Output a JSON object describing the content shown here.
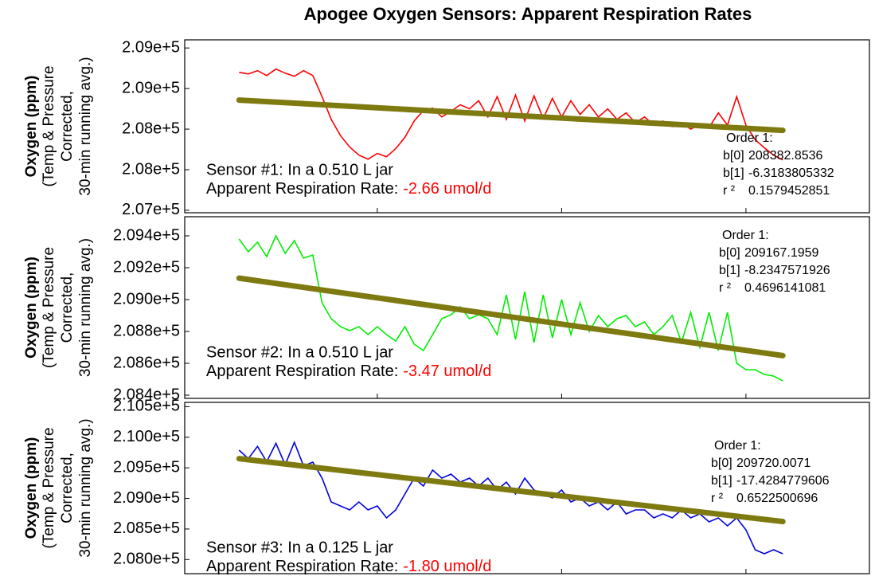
{
  "title": "Apogee Oxygen Sensors: Apparent Respiration Rates",
  "chart_data": [
    {
      "type": "line",
      "y_label": [
        "Oxygen (ppm)",
        "(Temp & Pressure",
        "Corrected,",
        "30-min running avg.)"
      ],
      "color": "#ff0000",
      "x": [
        4,
        5,
        6,
        7,
        8,
        9,
        10,
        11,
        12,
        13,
        14,
        15,
        16,
        17,
        18,
        19,
        20,
        21,
        22,
        23,
        24,
        25,
        26,
        27,
        28,
        29,
        30,
        31,
        32,
        33,
        34,
        35,
        36,
        37,
        38,
        39,
        40,
        41,
        42,
        43,
        44,
        45,
        46,
        47,
        48,
        49,
        50,
        51,
        52,
        53,
        54,
        55,
        56,
        57,
        58,
        59,
        60,
        61,
        62,
        63
      ],
      "values": [
        208700,
        208680,
        208720,
        208660,
        208740,
        208690,
        208650,
        208720,
        208660,
        208400,
        208120,
        207920,
        207780,
        207680,
        207630,
        207700,
        207660,
        207760,
        207900,
        208100,
        208230,
        208260,
        208150,
        208220,
        208300,
        208250,
        208350,
        208150,
        208400,
        208120,
        208420,
        208100,
        208410,
        208130,
        208380,
        208150,
        208350,
        208180,
        208300,
        208150,
        208250,
        208120,
        208200,
        208080,
        208150,
        208050,
        208100,
        208030,
        208080,
        208000,
        208060,
        208020,
        208200,
        208050,
        208400,
        208050,
        207870,
        207770,
        207680,
        207620
      ],
      "xlim": [
        -1.9,
        72.4
      ],
      "xticks": [
        19,
        39,
        59
      ],
      "ylim": [
        206970,
        209100
      ],
      "yticks": [
        {
          "value": 207000,
          "label": "2.07e+5"
        },
        {
          "value": 207500,
          "label": "2.08e+5"
        },
        {
          "value": 208000,
          "label": "2.08e+5"
        },
        {
          "value": 208500,
          "label": "2.09e+5"
        },
        {
          "value": 209000,
          "label": "2.09e+5"
        }
      ],
      "fit_color": "#7f7a10",
      "fit": {
        "label": "Order 1:",
        "b0_label": "b[0]",
        "b0": 208382.8536,
        "b1_label": "b[1]",
        "b1": -6.3183805332,
        "r2_label": "r ²",
        "r2": 0.1579452851
      },
      "annotation": {
        "sensor": "Sensor #1: In a 0.510 L jar",
        "rate_label": "Apparent Respiration Rate:",
        "rate": "-2.66 umol/d",
        "rate_color": "#ff0000"
      }
    },
    {
      "type": "line",
      "y_label": [
        "Oxygen (ppm)",
        "(Temp & Pressure",
        "Corrected,",
        "30-min running avg.)"
      ],
      "color": "#00ee00",
      "x": [
        4,
        5,
        6,
        7,
        8,
        9,
        10,
        11,
        12,
        13,
        14,
        15,
        16,
        17,
        18,
        19,
        20,
        21,
        22,
        23,
        24,
        25,
        26,
        27,
        28,
        29,
        30,
        31,
        32,
        33,
        34,
        35,
        36,
        37,
        38,
        39,
        40,
        41,
        42,
        43,
        44,
        45,
        46,
        47,
        48,
        49,
        50,
        51,
        52,
        53,
        54,
        55,
        56,
        57,
        58,
        59,
        60,
        61,
        62,
        63
      ],
      "values": [
        209380,
        209300,
        209360,
        209270,
        209400,
        209290,
        209370,
        209260,
        209280,
        208980,
        208880,
        208830,
        208805,
        208830,
        208780,
        208830,
        208780,
        208740,
        208830,
        208720,
        208680,
        208780,
        208880,
        208905,
        208955,
        208880,
        208905,
        208880,
        208780,
        209030,
        208750,
        209050,
        208730,
        209030,
        208760,
        209000,
        208780,
        208980,
        208800,
        208900,
        208830,
        208880,
        208900,
        208830,
        208860,
        208780,
        208830,
        208900,
        208730,
        208920,
        208700,
        208920,
        208680,
        208920,
        208600,
        208560,
        208560,
        208530,
        208520,
        208490
      ],
      "xlim": [
        -1.9,
        72.4
      ],
      "xticks": [
        19,
        39,
        59
      ],
      "ylim": [
        208380,
        209520
      ],
      "yticks": [
        {
          "value": 208400,
          "label": "2.084e+5"
        },
        {
          "value": 208600,
          "label": "2.086e+5"
        },
        {
          "value": 208800,
          "label": "2.088e+5"
        },
        {
          "value": 209000,
          "label": "2.090e+5"
        },
        {
          "value": 209200,
          "label": "2.092e+5"
        },
        {
          "value": 209400,
          "label": "2.094e+5"
        }
      ],
      "fit_color": "#7f7a10",
      "fit": {
        "label": "Order 1:",
        "b0_label": "b[0]",
        "b0": 209167.1959,
        "b1_label": "b[1]",
        "b1": -8.2347571926,
        "r2_label": "r ²",
        "r2": 0.4696141081
      },
      "annotation": {
        "sensor": "Sensor #2: In a 0.510 L jar",
        "rate_label": "Apparent Respiration Rate:",
        "rate": "-3.47 umol/d",
        "rate_color": "#ff0000"
      }
    },
    {
      "type": "line",
      "y_label": [
        "Oxygen (ppm)",
        "(Temp & Pressure",
        "Corrected,",
        "30-min running avg.)"
      ],
      "color": "#0000dd",
      "x": [
        4,
        5,
        6,
        7,
        8,
        9,
        10,
        11,
        12,
        13,
        14,
        15,
        16,
        17,
        18,
        19,
        20,
        21,
        22,
        23,
        24,
        25,
        26,
        27,
        28,
        29,
        30,
        31,
        32,
        33,
        34,
        35,
        36,
        37,
        38,
        39,
        40,
        41,
        42,
        43,
        44,
        45,
        46,
        47,
        48,
        49,
        50,
        51,
        52,
        53,
        54,
        55,
        56,
        57,
        58,
        59,
        60,
        61,
        62,
        63
      ],
      "values": [
        209788,
        209650,
        209850,
        209600,
        209900,
        209550,
        209918,
        209530,
        209593,
        209332,
        208942,
        208877,
        208812,
        208942,
        208812,
        208877,
        208681,
        208812,
        209072,
        209332,
        209202,
        209463,
        209332,
        209397,
        209267,
        209332,
        209202,
        209332,
        209137,
        209267,
        209072,
        209332,
        209137,
        209072,
        209007,
        209137,
        208942,
        209007,
        208877,
        208942,
        208812,
        208942,
        208747,
        208812,
        208812,
        208681,
        208747,
        208681,
        208812,
        208681,
        208747,
        208616,
        208681,
        208551,
        208681,
        208486,
        208161,
        208096,
        208161,
        208096
      ],
      "xlim": [
        -1.9,
        72.4
      ],
      "xticks": [
        19,
        39,
        59
      ],
      "ylim": [
        207770,
        210570
      ],
      "yticks": [
        {
          "value": 208000,
          "label": "2.080e+5"
        },
        {
          "value": 208500,
          "label": "2.085e+5"
        },
        {
          "value": 209000,
          "label": "2.090e+5"
        },
        {
          "value": 209500,
          "label": "2.095e+5"
        },
        {
          "value": 210000,
          "label": "2.100e+5"
        },
        {
          "value": 210500,
          "label": "2.105e+5"
        }
      ],
      "fit_color": "#7f7a10",
      "fit": {
        "label": "Order 1:",
        "b0_label": "b[0]",
        "b0": 209720.0071,
        "b1_label": "b[1]",
        "b1": -17.4284779606,
        "r2_label": "r ²",
        "r2": 0.6522500696
      },
      "annotation": {
        "sensor": "Sensor #3: In a 0.125 L jar",
        "rate_label": "Apparent Respiration Rate:",
        "rate": "-1.80 umol/d",
        "rate_color": "#ff0000"
      }
    }
  ]
}
